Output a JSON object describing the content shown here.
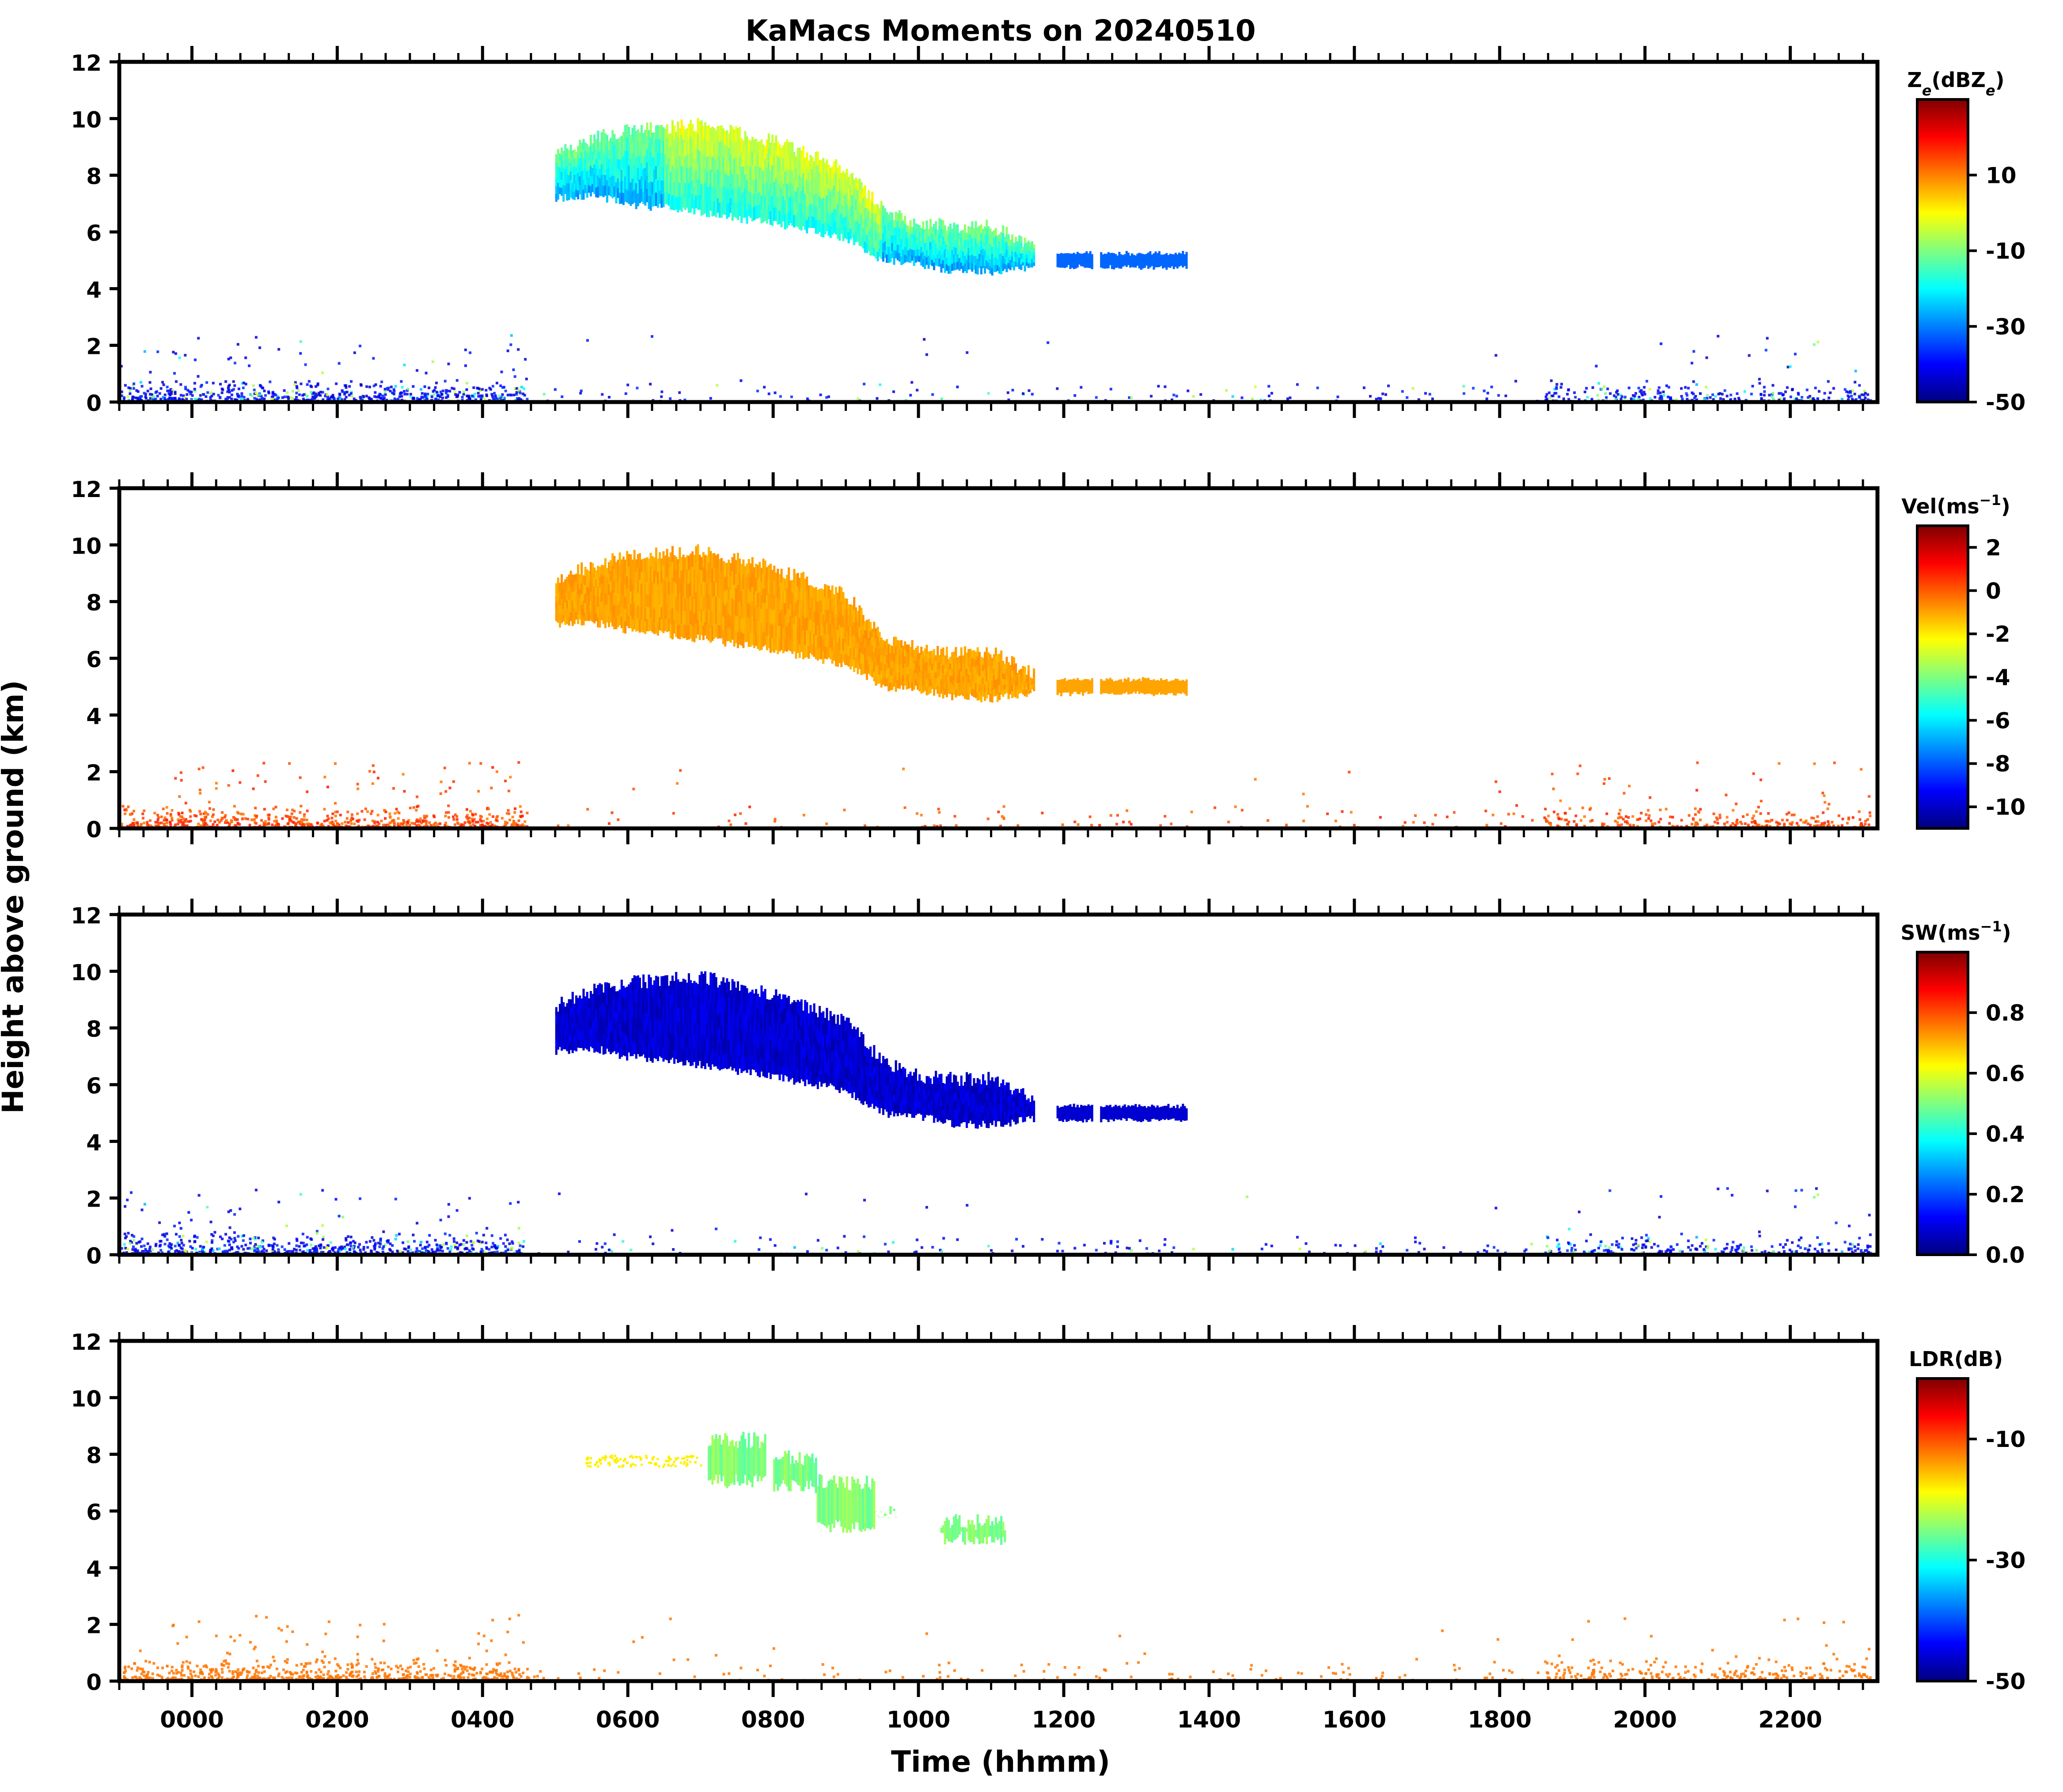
{
  "chart_data": {
    "type": "heatmap",
    "title": "KaMacs Moments on 20240510",
    "xlabel": "Time (hhmm)",
    "ylabel": "Height above ground (km)",
    "x_tick_labels": [
      "0000",
      "0200",
      "0400",
      "0600",
      "0800",
      "1000",
      "1200",
      "1400",
      "1600",
      "1800",
      "2000",
      "2200"
    ],
    "x_ticks_hours": [
      0,
      2,
      4,
      6,
      8,
      10,
      12,
      14,
      16,
      18,
      20,
      22
    ],
    "xlim_hours": [
      -1,
      23.2
    ],
    "y_tick_labels": [
      "0",
      "2",
      "4",
      "6",
      "8",
      "10",
      "12"
    ],
    "y_ticks": [
      0,
      2,
      4,
      6,
      8,
      10,
      12
    ],
    "ylim": [
      0,
      12
    ],
    "colormap": "jet",
    "colormap_stops": [
      "#00007f",
      "#0000ff",
      "#007fff",
      "#00ffff",
      "#7fff7f",
      "#ffff00",
      "#ff7f00",
      "#ff0000",
      "#7f0000"
    ],
    "panels": [
      {
        "name": "Ze",
        "colorbar_label": "Z_e(dBZ_e)",
        "colorbar_ticks": [
          10,
          -10,
          -30,
          -50
        ],
        "colorbar_tick_labels": [
          "10",
          "-10",
          "-30",
          "-50"
        ],
        "clim": [
          -50,
          30
        ],
        "cloud_top_km": [
          [
            5.0,
            8.8
          ],
          [
            5.5,
            9.3
          ],
          [
            6.0,
            9.6
          ],
          [
            7.0,
            9.8
          ],
          [
            8.0,
            9.2
          ],
          [
            9.0,
            8.2
          ],
          [
            9.5,
            6.8
          ],
          [
            10.0,
            6.3
          ],
          [
            10.5,
            6.2
          ],
          [
            11.0,
            6.2
          ],
          [
            11.6,
            5.4
          ]
        ],
        "cloud_base_km": [
          [
            5.0,
            7.2
          ],
          [
            5.5,
            7.3
          ],
          [
            6.0,
            7.0
          ],
          [
            7.0,
            6.7
          ],
          [
            8.0,
            6.3
          ],
          [
            9.0,
            5.8
          ],
          [
            9.5,
            5.0
          ],
          [
            10.0,
            4.9
          ],
          [
            10.5,
            4.6
          ],
          [
            11.0,
            4.6
          ],
          [
            11.6,
            4.8
          ]
        ],
        "tail_segments_hours": [
          [
            11.9,
            12.4
          ],
          [
            12.5,
            13.7
          ]
        ],
        "tail_height_km": 5.0,
        "typical_value": -20
      },
      {
        "name": "Vel",
        "colorbar_label": "Vel(ms^-1)",
        "colorbar_ticks": [
          2,
          0,
          -2,
          -4,
          -6,
          -8,
          -10
        ],
        "colorbar_tick_labels": [
          "2",
          "0",
          "-2",
          "-4",
          "-6",
          "-8",
          "-10"
        ],
        "clim": [
          -11,
          3
        ],
        "cloud_top_km": [
          [
            5.0,
            8.8
          ],
          [
            5.5,
            9.3
          ],
          [
            6.0,
            9.6
          ],
          [
            7.0,
            9.8
          ],
          [
            8.0,
            9.2
          ],
          [
            9.0,
            8.2
          ],
          [
            9.5,
            6.8
          ],
          [
            10.0,
            6.3
          ],
          [
            10.5,
            6.2
          ],
          [
            11.0,
            6.2
          ],
          [
            11.6,
            5.4
          ]
        ],
        "cloud_base_km": [
          [
            5.0,
            7.2
          ],
          [
            5.5,
            7.3
          ],
          [
            6.0,
            7.0
          ],
          [
            7.0,
            6.7
          ],
          [
            8.0,
            6.3
          ],
          [
            9.0,
            5.8
          ],
          [
            9.5,
            5.0
          ],
          [
            10.0,
            4.9
          ],
          [
            10.5,
            4.6
          ],
          [
            11.0,
            4.6
          ],
          [
            11.6,
            4.8
          ]
        ],
        "tail_segments_hours": [
          [
            11.9,
            12.4
          ],
          [
            12.5,
            13.7
          ]
        ],
        "tail_height_km": 5.0,
        "typical_value": -1
      },
      {
        "name": "SW",
        "colorbar_label": "SW(ms^-1)",
        "colorbar_ticks": [
          0.8,
          0.6,
          0.4,
          0.2,
          0.0
        ],
        "colorbar_tick_labels": [
          "0.8",
          "0.6",
          "0.4",
          "0.2",
          "0.0"
        ],
        "clim": [
          0,
          1
        ],
        "cloud_top_km": [
          [
            5.0,
            8.8
          ],
          [
            5.5,
            9.3
          ],
          [
            6.0,
            9.6
          ],
          [
            7.0,
            9.8
          ],
          [
            8.0,
            9.2
          ],
          [
            9.0,
            8.2
          ],
          [
            9.5,
            6.8
          ],
          [
            10.0,
            6.3
          ],
          [
            10.5,
            6.2
          ],
          [
            11.0,
            6.2
          ],
          [
            11.6,
            5.4
          ]
        ],
        "cloud_base_km": [
          [
            5.0,
            7.2
          ],
          [
            5.5,
            7.3
          ],
          [
            6.0,
            7.0
          ],
          [
            7.0,
            6.7
          ],
          [
            8.0,
            6.3
          ],
          [
            9.0,
            5.8
          ],
          [
            9.5,
            5.0
          ],
          [
            10.0,
            4.9
          ],
          [
            10.5,
            4.6
          ],
          [
            11.0,
            4.6
          ],
          [
            11.6,
            4.8
          ]
        ],
        "tail_segments_hours": [
          [
            11.9,
            12.4
          ],
          [
            12.5,
            13.7
          ]
        ],
        "tail_height_km": 5.0,
        "typical_value": 0.08
      },
      {
        "name": "LDR",
        "colorbar_label": "LDR(dB)",
        "colorbar_ticks": [
          -10,
          -30,
          -50
        ],
        "colorbar_tick_labels": [
          "-10",
          "-30",
          "-50"
        ],
        "clim": [
          -50,
          0
        ],
        "patches": [
          {
            "x": [
              7.1,
              7.9
            ],
            "top": 8.8,
            "base": 6.8
          },
          {
            "x": [
              8.0,
              8.6
            ],
            "top": 8.2,
            "base": 6.6
          },
          {
            "x": [
              8.6,
              9.4
            ],
            "top": 7.3,
            "base": 5.2
          },
          {
            "x": [
              9.4,
              9.7
            ],
            "top": 6.2,
            "base": 5.8
          },
          {
            "x": [
              10.3,
              11.2
            ],
            "top": 5.9,
            "base": 4.8
          }
        ],
        "sparse_band_hours": [
          5.4,
          7.0
        ],
        "sparse_band_height_km": 7.8,
        "typical_value": -25,
        "noise_value": -12
      }
    ]
  }
}
